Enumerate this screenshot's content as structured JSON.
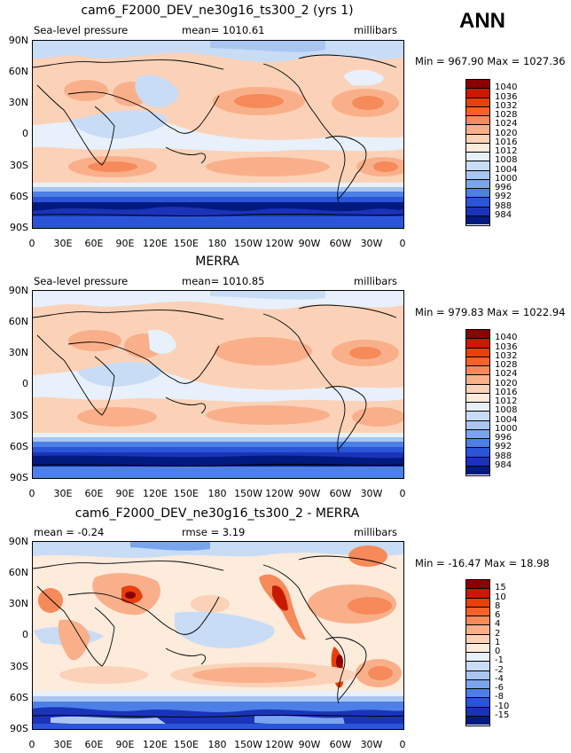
{
  "season_label": "ANN",
  "panels": [
    {
      "title": "cam6_F2000_DEV_ne30g16_ts300_2 (yrs 1)",
      "left_label": "Sea-level pressure",
      "center_label": "mean=  1010.61",
      "right_label": "millibars",
      "minmax": "Min = 967.90 Max = 1027.36",
      "colorbar": {
        "labels": [
          "1040",
          "1036",
          "1032",
          "1028",
          "1024",
          "1020",
          "1016",
          "1012",
          "1008",
          "1004",
          "1000",
          "996",
          "992",
          "988",
          "984"
        ],
        "colors": [
          "#8b0000",
          "#c71a00",
          "#e8400a",
          "#f4622a",
          "#f68a5a",
          "#f9b08a",
          "#fbd2b8",
          "#fdebdc",
          "#e8f0fb",
          "#c8dcf6",
          "#a9c6f1",
          "#7aa5ec",
          "#4d80e6",
          "#2a55d8",
          "#1a33b8",
          "#001a80"
        ]
      }
    },
    {
      "title": "MERRA",
      "left_label": "Sea-level pressure",
      "center_label": "mean=  1010.85",
      "right_label": "millibars",
      "minmax": "Min = 979.83 Max = 1022.94",
      "colorbar": {
        "labels": [
          "1040",
          "1036",
          "1032",
          "1028",
          "1024",
          "1020",
          "1016",
          "1012",
          "1008",
          "1004",
          "1000",
          "996",
          "992",
          "988",
          "984"
        ],
        "colors": [
          "#8b0000",
          "#c71a00",
          "#e8400a",
          "#f4622a",
          "#f68a5a",
          "#f9b08a",
          "#fbd2b8",
          "#fdebdc",
          "#e8f0fb",
          "#c8dcf6",
          "#a9c6f1",
          "#7aa5ec",
          "#4d80e6",
          "#2a55d8",
          "#1a33b8",
          "#001a80"
        ]
      }
    },
    {
      "title": "cam6_F2000_DEV_ne30g16_ts300_2 - MERRA",
      "left_label": "mean =   -0.24",
      "center_label": "rmse =     3.19",
      "right_label": "millibars",
      "minmax": "Min = -16.47 Max =  18.98",
      "colorbar": {
        "labels": [
          "15",
          "10",
          "8",
          "6",
          "4",
          "2",
          "1",
          "0",
          "-1",
          "-2",
          "-4",
          "-6",
          "-8",
          "-10",
          "-15"
        ],
        "colors": [
          "#8b0000",
          "#c71a00",
          "#e8400a",
          "#f4622a",
          "#f68a5a",
          "#f9b08a",
          "#fbd2b8",
          "#fdebdc",
          "#e8f0fb",
          "#c8dcf6",
          "#a9c6f1",
          "#7aa5ec",
          "#4d80e6",
          "#2a55d8",
          "#1a33b8",
          "#001a80"
        ]
      }
    }
  ],
  "lat_labels": [
    "90N",
    "60N",
    "30N",
    "0",
    "30S",
    "60S",
    "90S"
  ],
  "lon_labels": [
    "0",
    "30E",
    "60E",
    "90E",
    "120E",
    "150E",
    "180",
    "150W",
    "120W",
    "90W",
    "60W",
    "30W",
    "0"
  ]
}
